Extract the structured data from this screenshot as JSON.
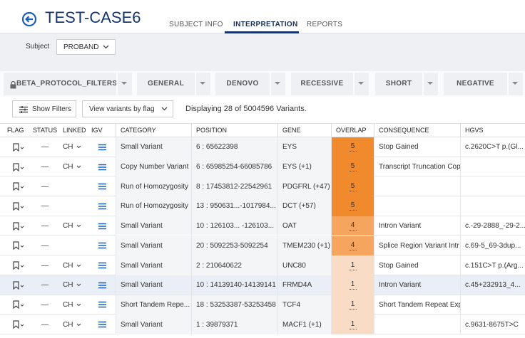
{
  "header": {
    "title": "TEST-CASE6",
    "tabs": [
      "SUBJECT INFO",
      "INTERPRETATION",
      "REPORTS"
    ],
    "active_tab": 1
  },
  "subject": {
    "label": "Subject",
    "value": "PROBAND"
  },
  "filters": [
    "BETA_PROTOCOL_FILTERS",
    "GENERAL",
    "DENOVO",
    "RECESSIVE",
    "SHORT",
    "NEGATIVE"
  ],
  "toolbar": {
    "show_filters": "Show Filters",
    "view_by_flag": "View variants by flag",
    "summary": "Displaying 28 of 5004596 Variants."
  },
  "table": {
    "columns": [
      "FLAG",
      "STATUS",
      "LINKED",
      "IGV",
      "CATEGORY",
      "POSITION",
      "GENE",
      "OVERLAP",
      "CONSEQUENCE",
      "HGVS"
    ],
    "selected_row": 7,
    "rows": [
      {
        "status": "—",
        "linked": "CH",
        "category": "Small Variant",
        "position": "6 : 65622398",
        "gene": "EYS",
        "overlap": 5,
        "consequence": "Stop Gained",
        "hgvs": "c.2620C>T p.(Gl..."
      },
      {
        "status": "—",
        "linked": "CH",
        "category": "Copy Number Variant",
        "position": "6 : 65985254-66085786",
        "gene": "EYS (+1)",
        "overlap": 5,
        "consequence": "Transcript Truncation  Cop"
      },
      {
        "status": "—",
        "category": "Run of Homozygosity",
        "position": "8 : 17453812-22542961",
        "gene": "PDGFRL (+47)",
        "overlap": 5
      },
      {
        "status": "—",
        "category": "Run of Homozygosity",
        "position": "13 : 950631...-1017984...",
        "gene": "DCT (+57)",
        "overlap": 5
      },
      {
        "status": "—",
        "linked": "CH",
        "category": "Small Variant",
        "position": "10 : 126103... -126103...",
        "gene": "OAT",
        "overlap": 4,
        "consequence": "Intron Variant",
        "hgvs": "c.-29-2888_-29-2..."
      },
      {
        "status": "—",
        "category": "Small Variant",
        "position": "20 : 5092253-5092254",
        "gene": "TMEM230 (+1)",
        "overlap": 4,
        "consequence": "Splice Region Variant  Intr",
        "hgvs": "c.69-5_69-3dup..."
      },
      {
        "status": "—",
        "linked": "CH",
        "category": "Small Variant",
        "position": "2 : 210640622",
        "gene": "UNC80",
        "overlap": 1,
        "consequence": "Stop Gained",
        "hgvs": "c.151C>T p.(Arg..."
      },
      {
        "status": "—",
        "linked": "CH",
        "category": "Small Variant",
        "position": "10 : 14139140-14139141",
        "gene": "FRMD4A",
        "overlap": 1,
        "consequence": "Intron Variant",
        "hgvs": "c.45+232913_4..."
      },
      {
        "status": "—",
        "linked": "CH",
        "category": "Short Tandem Repe...",
        "position": "18 : 53253387-53253458",
        "gene": "TCF4",
        "overlap": 1,
        "consequence": "Short Tandem Repeat Expa"
      },
      {
        "status": "—",
        "linked": "CH",
        "category": "Small Variant",
        "position": "1 : 39879371",
        "gene": "MACF1 (+1)",
        "overlap": 1,
        "hgvs": "c.9631-8675T>C"
      }
    ]
  }
}
